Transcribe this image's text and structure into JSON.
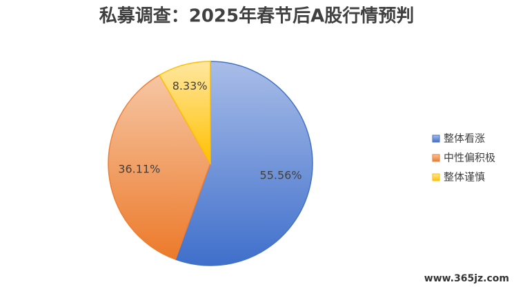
{
  "chart_data": {
    "type": "pie",
    "title": "私募调查：2025年春节后A股行情预判",
    "categories": [
      "整体看涨",
      "中性偏积极",
      "整体谨慎"
    ],
    "values": [
      55.56,
      36.11,
      8.33
    ],
    "value_labels": [
      "55.56%",
      "36.11%",
      "8.33%"
    ],
    "colors": [
      "#4472c4",
      "#ed7d31",
      "#ffc000"
    ],
    "legend": "right"
  },
  "watermark": "www.365jz.com"
}
